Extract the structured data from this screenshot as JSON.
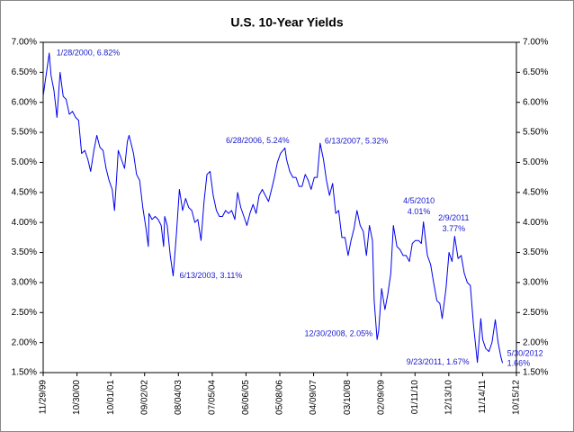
{
  "chart_data": {
    "type": "line",
    "title": "U.S. 10-Year Yields",
    "xlim": [
      "11/29/99",
      "10/15/12"
    ],
    "xticks": [
      "11/29/99",
      "10/30/00",
      "10/01/01",
      "09/02/02",
      "08/04/03",
      "07/05/04",
      "06/06/05",
      "05/08/06",
      "04/09/07",
      "03/10/08",
      "02/09/09",
      "01/11/10",
      "12/13/10",
      "11/14/11",
      "10/15/12"
    ],
    "ylim": [
      1.5,
      7
    ],
    "yticks": [
      {
        "value": 1.5,
        "label": "1.50%"
      },
      {
        "value": 2,
        "label": "2.00%"
      },
      {
        "value": 2.5,
        "label": "2.50%"
      },
      {
        "value": 3,
        "label": "3.00%"
      },
      {
        "value": 3.5,
        "label": "3.50%"
      },
      {
        "value": 4,
        "label": "4.00%"
      },
      {
        "value": 4.5,
        "label": "4.50%"
      },
      {
        "value": 5,
        "label": "5.00%"
      },
      {
        "value": 5.5,
        "label": "5.50%"
      },
      {
        "value": 6,
        "label": "6.00%"
      },
      {
        "value": 6.5,
        "label": "6.50%"
      },
      {
        "value": 7,
        "label": "7.00%"
      }
    ],
    "series": [
      {
        "color": "#0000ee",
        "x": [
          "11/29/99",
          "12/15/99",
          "1/14/00",
          "1/28/00",
          "2/15/00",
          "3/15/00",
          "4/14/00",
          "5/15/00",
          "6/15/00",
          "7/14/00",
          "8/15/00",
          "9/15/00",
          "10/16/00",
          "11/15/00",
          "12/15/00",
          "1/16/01",
          "2/15/01",
          "3/15/01",
          "4/16/01",
          "5/15/01",
          "6/15/01",
          "7/16/01",
          "8/15/01",
          "9/14/01",
          "10/15/01",
          "11/7/01",
          "11/30/01",
          "12/14/01",
          "1/15/02",
          "2/15/02",
          "3/15/02",
          "4/1/02",
          "5/15/02",
          "6/14/02",
          "7/15/02",
          "8/15/02",
          "9/16/02",
          "10/9/02",
          "10/16/02",
          "11/15/02",
          "12/16/02",
          "1/15/03",
          "2/14/03",
          "3/10/03",
          "3/21/03",
          "4/15/03",
          "5/15/03",
          "6/13/03",
          "7/15/03",
          "8/14/03",
          "9/15/03",
          "10/15/03",
          "11/14/03",
          "12/15/03",
          "1/15/04",
          "2/13/04",
          "3/16/04",
          "4/15/04",
          "5/14/04",
          "6/14/04",
          "7/15/04",
          "8/16/04",
          "9/15/04",
          "10/15/04",
          "11/15/04",
          "12/15/04",
          "1/14/05",
          "2/15/05",
          "3/15/05",
          "4/15/05",
          "5/16/05",
          "6/15/05",
          "7/15/05",
          "8/15/05",
          "9/15/05",
          "10/14/05",
          "11/15/05",
          "12/15/05",
          "1/16/06",
          "2/15/06",
          "3/15/06",
          "4/14/06",
          "5/15/06",
          "6/28/06",
          "7/14/06",
          "8/15/06",
          "9/15/06",
          "10/16/06",
          "11/15/06",
          "12/15/06",
          "1/16/07",
          "2/15/07",
          "3/15/07",
          "4/16/07",
          "5/15/07",
          "6/13/07",
          "7/16/07",
          "8/15/07",
          "9/14/07",
          "10/15/07",
          "11/15/07",
          "12/14/07",
          "1/15/08",
          "2/15/08",
          "3/17/08",
          "4/15/08",
          "5/15/08",
          "6/13/08",
          "7/15/08",
          "8/15/08",
          "9/15/08",
          "10/15/08",
          "11/14/08",
          "12/1/08",
          "12/30/08",
          "1/15/09",
          "2/13/09",
          "3/18/09",
          "4/15/09",
          "5/15/09",
          "6/10/09",
          "7/15/09",
          "8/14/09",
          "9/15/09",
          "10/15/09",
          "11/16/09",
          "12/15/09",
          "1/15/10",
          "2/16/10",
          "3/15/10",
          "4/5/10",
          "5/14/10",
          "6/15/10",
          "7/15/10",
          "8/16/10",
          "9/15/10",
          "10/8/10",
          "11/15/10",
          "12/15/10",
          "1/14/11",
          "2/9/11",
          "3/15/11",
          "4/15/11",
          "5/16/11",
          "6/15/11",
          "7/15/11",
          "8/15/11",
          "9/23/11",
          "10/27/11",
          "11/15/11",
          "12/15/11",
          "1/16/12",
          "2/15/12",
          "3/19/12",
          "4/16/12",
          "5/15/12",
          "5/30/12"
        ],
        "values": [
          6.1,
          6.3,
          6.65,
          6.82,
          6.45,
          6.2,
          5.75,
          6.5,
          6.1,
          6.05,
          5.8,
          5.85,
          5.75,
          5.7,
          5.15,
          5.2,
          5.05,
          4.85,
          5.2,
          5.45,
          5.25,
          5.2,
          4.9,
          4.7,
          4.55,
          4.2,
          4.8,
          5.2,
          5.05,
          4.9,
          5.35,
          5.45,
          5.15,
          4.8,
          4.7,
          4.25,
          3.9,
          3.6,
          4.15,
          4.05,
          4.1,
          4.05,
          3.95,
          3.6,
          4.1,
          3.95,
          3.45,
          3.11,
          3.8,
          4.55,
          4.2,
          4.4,
          4.25,
          4.2,
          4.0,
          4.05,
          3.7,
          4.35,
          4.8,
          4.85,
          4.45,
          4.2,
          4.1,
          4.1,
          4.2,
          4.15,
          4.2,
          4.05,
          4.5,
          4.25,
          4.1,
          3.95,
          4.15,
          4.3,
          4.15,
          4.45,
          4.55,
          4.45,
          4.35,
          4.55,
          4.75,
          5.0,
          5.15,
          5.24,
          5.05,
          4.85,
          4.75,
          4.75,
          4.6,
          4.6,
          4.8,
          4.7,
          4.55,
          4.75,
          4.75,
          5.32,
          5.05,
          4.7,
          4.45,
          4.65,
          4.15,
          4.2,
          3.75,
          3.75,
          3.45,
          3.7,
          3.9,
          4.2,
          3.95,
          3.85,
          3.45,
          3.95,
          3.7,
          2.7,
          2.05,
          2.2,
          2.9,
          2.55,
          2.8,
          3.15,
          3.95,
          3.6,
          3.55,
          3.45,
          3.45,
          3.35,
          3.65,
          3.7,
          3.7,
          3.65,
          4.01,
          3.45,
          3.3,
          3.0,
          2.7,
          2.65,
          2.4,
          2.9,
          3.5,
          3.35,
          3.77,
          3.4,
          3.45,
          3.15,
          3.0,
          2.95,
          2.3,
          1.67,
          2.4,
          2.05,
          1.9,
          1.85,
          2.0,
          2.38,
          2.0,
          1.75,
          1.66
        ]
      }
    ],
    "annotations": [
      {
        "x": "1/28/00",
        "y": 6.82,
        "text": [
          "1/28/2000, 6.82%"
        ]
      },
      {
        "x": "6/13/03",
        "y": 3.11,
        "text": [
          "6/13/2003, 3.11%"
        ]
      },
      {
        "x": "6/28/06",
        "y": 5.24,
        "text": [
          "6/28/2006, 5.24%"
        ]
      },
      {
        "x": "6/13/07",
        "y": 5.32,
        "text": [
          "6/13/2007, 5.32%"
        ]
      },
      {
        "x": "12/30/08",
        "y": 2.05,
        "text": [
          "12/30/2008, 2.05%"
        ]
      },
      {
        "x": "4/5/10",
        "y": 4.01,
        "text": [
          "4/5/2010",
          "4.01%"
        ]
      },
      {
        "x": "2/9/11",
        "y": 3.77,
        "text": [
          "2/9/2011",
          "3.77%"
        ]
      },
      {
        "x": "9/23/11",
        "y": 1.67,
        "text": [
          "9/23/2011, 1.67%"
        ]
      },
      {
        "x": "5/30/12",
        "y": 1.66,
        "text": [
          "5/30/2012",
          "1.66%"
        ]
      }
    ]
  }
}
